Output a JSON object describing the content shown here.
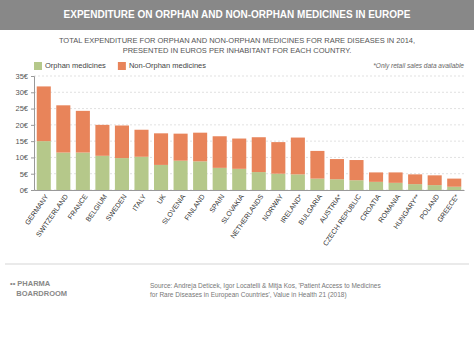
{
  "chart_data": {
    "type": "bar",
    "stacked": true,
    "title": "EXPENDITURE ON ORPHAN AND NON-ORPHAN MEDICINES IN EUROPE",
    "subtitle": "TOTAL EXPENDITURE FOR ORPHAN AND NON-ORPHAN MEDICINES FOR RARE DISEASES IN 2014,\nPRESENTED IN EUROS PER INHABITANT FOR EACH COUNTRY.",
    "annotations": [
      "*Only retail sales data available",
      "•• PHARMA\n   BOARDROOM",
      "Source: Andreja Deticek, Igor Locatelli & Mitja Kos, 'Patient Access to Medicines\nfor Rare Diseases in European Countries', Value in Health 21 (2018)"
    ],
    "categories": [
      "GERMANY",
      "SWITZERLAND",
      "FRANCE",
      "BELGIUM",
      "SWEDEN",
      "ITALY",
      "UK",
      "SLOVENIA",
      "FINLAND",
      "SPAIN",
      "SLOVAKIA",
      "NETHERLANDS",
      "NORWAY",
      "IRELAND*",
      "BULGARIA",
      "AUSTRIA*",
      "CZECH REPUBLIC",
      "CROATIA",
      "ROMANIA",
      "HUNGARY**",
      "POLAND",
      "GREECE*"
    ],
    "series": [
      {
        "name": "Orphan medicines",
        "color": "#b5c88a",
        "values": [
          15.0,
          11.5,
          11.5,
          10.5,
          9.8,
          10.2,
          7.7,
          9.0,
          8.8,
          6.8,
          6.5,
          5.5,
          5.0,
          4.8,
          3.5,
          3.3,
          3.0,
          2.5,
          2.2,
          1.8,
          1.5,
          1.0
        ]
      },
      {
        "name": "Non-Orphan medicines",
        "color": "#e8845a",
        "values": [
          16.8,
          14.5,
          12.8,
          9.5,
          10.0,
          8.3,
          9.7,
          8.3,
          8.8,
          9.7,
          9.3,
          10.7,
          9.7,
          11.3,
          8.5,
          6.2,
          6.2,
          2.9,
          3.2,
          3.0,
          3.0,
          2.5
        ]
      }
    ],
    "ylim": [
      0,
      35
    ],
    "yticks": [
      {
        "value": 0,
        "label": "0€"
      },
      {
        "value": 5,
        "label": "5€"
      },
      {
        "value": 10,
        "label": "10€"
      },
      {
        "value": 15,
        "label": "15€"
      },
      {
        "value": 20,
        "label": "20€"
      },
      {
        "value": 25,
        "label": "25€"
      },
      {
        "value": 30,
        "label": "30€"
      },
      {
        "value": 35,
        "label": "35€"
      }
    ],
    "grid": true
  }
}
